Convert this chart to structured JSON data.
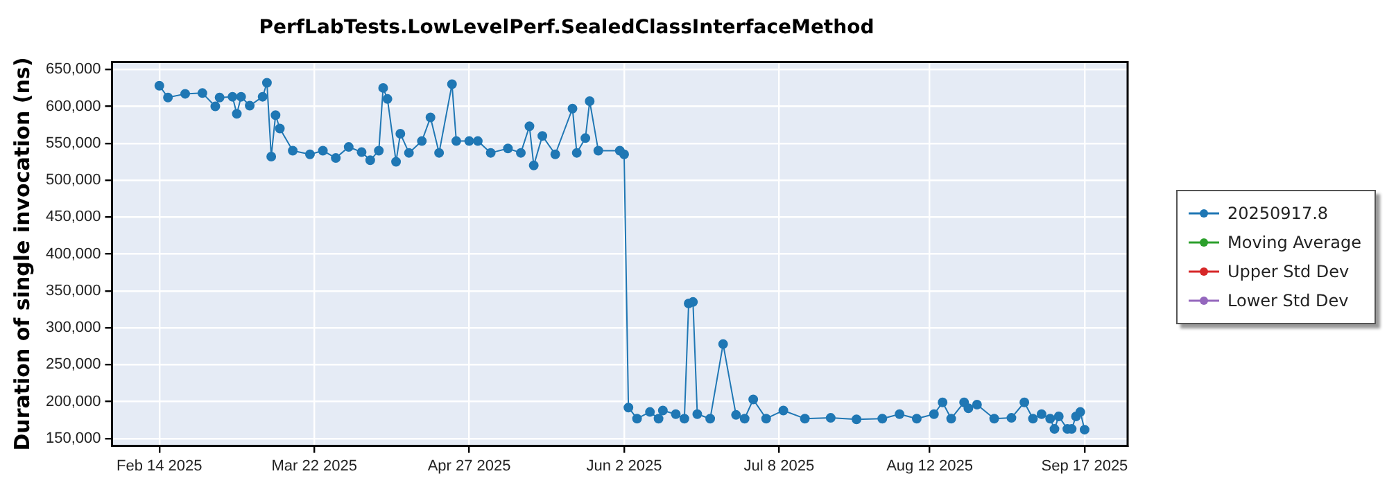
{
  "chart_data": {
    "type": "line",
    "title": "PerfLabTests.LowLevelPerf.SealedClassInterfaceMethod",
    "ylabel": "Duration of single invocation (ns)",
    "xlim": [
      "2025-02-03",
      "2025-09-27"
    ],
    "xticks": [
      {
        "value": "2025-02-14",
        "label": "Feb 14 2025"
      },
      {
        "value": "2025-03-22",
        "label": "Mar 22 2025"
      },
      {
        "value": "2025-04-27",
        "label": "Apr 27 2025"
      },
      {
        "value": "2025-06-02",
        "label": "Jun 2 2025"
      },
      {
        "value": "2025-07-08",
        "label": "Jul 8 2025"
      },
      {
        "value": "2025-08-12",
        "label": "Aug 12 2025"
      },
      {
        "value": "2025-09-17",
        "label": "Sep 17 2025"
      }
    ],
    "ylim": [
      140000,
      660000
    ],
    "yticks": [
      {
        "value": 150000,
        "label": "150,000"
      },
      {
        "value": 200000,
        "label": "200,000"
      },
      {
        "value": 250000,
        "label": "250,000"
      },
      {
        "value": 300000,
        "label": "300,000"
      },
      {
        "value": 350000,
        "label": "350,000"
      },
      {
        "value": 400000,
        "label": "400,000"
      },
      {
        "value": 450000,
        "label": "450,000"
      },
      {
        "value": 500000,
        "label": "500,000"
      },
      {
        "value": 550000,
        "label": "550,000"
      },
      {
        "value": 600000,
        "label": "600,000"
      },
      {
        "value": 650000,
        "label": "650,000"
      }
    ],
    "grid": true,
    "legend": "right",
    "marker": "circle",
    "line_style": "solid",
    "series": [
      {
        "name": "20250917.8",
        "color": "#1f77b4",
        "x": [
          "2025-02-14",
          "2025-02-16",
          "2025-02-20",
          "2025-02-24",
          "2025-02-27",
          "2025-02-28",
          "2025-03-03",
          "2025-03-04",
          "2025-03-05",
          "2025-03-07",
          "2025-03-10",
          "2025-03-11",
          "2025-03-12",
          "2025-03-13",
          "2025-03-14",
          "2025-03-17",
          "2025-03-21",
          "2025-03-24",
          "2025-03-27",
          "2025-03-30",
          "2025-04-02",
          "2025-04-04",
          "2025-04-06",
          "2025-04-07",
          "2025-04-08",
          "2025-04-10",
          "2025-04-11",
          "2025-04-13",
          "2025-04-16",
          "2025-04-18",
          "2025-04-20",
          "2025-04-23",
          "2025-04-24",
          "2025-04-27",
          "2025-04-29",
          "2025-05-02",
          "2025-05-06",
          "2025-05-09",
          "2025-05-11",
          "2025-05-12",
          "2025-05-14",
          "2025-05-17",
          "2025-05-21",
          "2025-05-22",
          "2025-05-24",
          "2025-05-25",
          "2025-05-27",
          "2025-06-01",
          "2025-06-02",
          "2025-06-03",
          "2025-06-05",
          "2025-06-08",
          "2025-06-10",
          "2025-06-11",
          "2025-06-14",
          "2025-06-16",
          "2025-06-17",
          "2025-06-18",
          "2025-06-19",
          "2025-06-22",
          "2025-06-25",
          "2025-06-28",
          "2025-06-30",
          "2025-07-02",
          "2025-07-05",
          "2025-07-09",
          "2025-07-14",
          "2025-07-20",
          "2025-07-26",
          "2025-08-01",
          "2025-08-05",
          "2025-08-09",
          "2025-08-13",
          "2025-08-15",
          "2025-08-17",
          "2025-08-20",
          "2025-08-21",
          "2025-08-23",
          "2025-08-27",
          "2025-08-31",
          "2025-09-03",
          "2025-09-05",
          "2025-09-07",
          "2025-09-09",
          "2025-09-10",
          "2025-09-11",
          "2025-09-13",
          "2025-09-14",
          "2025-09-15",
          "2025-09-16",
          "2025-09-17"
        ],
        "values": [
          628000,
          612000,
          617000,
          618000,
          600000,
          612000,
          613000,
          590000,
          613000,
          601000,
          613000,
          632000,
          532000,
          588000,
          570000,
          540000,
          535000,
          540000,
          530000,
          545000,
          538000,
          527000,
          540000,
          625000,
          610000,
          525000,
          563000,
          537000,
          553000,
          585000,
          537000,
          630000,
          553000,
          553000,
          553000,
          537000,
          543000,
          537000,
          573000,
          520000,
          560000,
          535000,
          597000,
          537000,
          557000,
          607000,
          540000,
          540000,
          535000,
          192000,
          177000,
          186000,
          177000,
          188000,
          183000,
          177000,
          333000,
          335000,
          183000,
          177000,
          278000,
          182000,
          177000,
          203000,
          177000,
          188000,
          177000,
          178000,
          176000,
          177000,
          183000,
          177000,
          183000,
          199000,
          177000,
          199000,
          191000,
          196000,
          177000,
          178000,
          199000,
          177000,
          183000,
          177000,
          163000,
          180000,
          163000,
          163000,
          180000,
          186000,
          162000
        ]
      },
      {
        "name": "Moving Average",
        "color": "#2ca02c"
      },
      {
        "name": "Upper Std Dev",
        "color": "#d62728"
      },
      {
        "name": "Lower Std Dev",
        "color": "#9467bd"
      }
    ]
  }
}
